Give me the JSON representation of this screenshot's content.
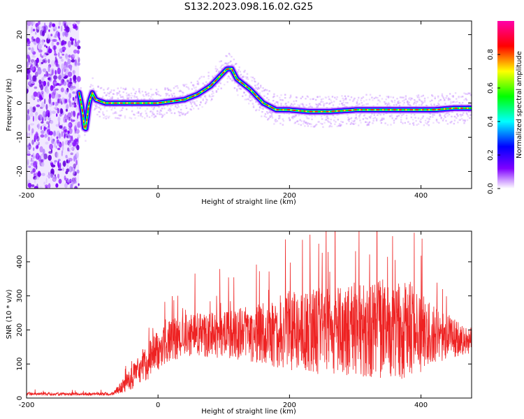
{
  "title": "S132.2023.098.16.02.G25",
  "colors": {
    "snr_line": "#ee2222",
    "colormap": [
      "#ffffff",
      "#cc99ff",
      "#7f00ff",
      "#0000ff",
      "#00ffff",
      "#00ff00",
      "#ffff00",
      "#ff0000",
      "#ff00aa"
    ]
  },
  "chart_data": [
    {
      "type": "heatmap",
      "name": "spectrogram",
      "xlabel": "Height of straight line (km)",
      "ylabel": "Frequency (Hz)",
      "xlim": [
        -200,
        477
      ],
      "ylim": [
        -25,
        24
      ],
      "x_ticks": [
        -200,
        0,
        200,
        400
      ],
      "y_ticks": [
        -20,
        -10,
        0,
        10,
        20
      ],
      "noise_region_x": [
        -200,
        -120
      ],
      "ridge": [
        {
          "x": -120,
          "y": 3
        },
        {
          "x": -115,
          "y": -2
        },
        {
          "x": -111,
          "y": -9
        },
        {
          "x": -105,
          "y": 0
        },
        {
          "x": -100,
          "y": 3
        },
        {
          "x": -95,
          "y": 1
        },
        {
          "x": -80,
          "y": 0
        },
        {
          "x": -50,
          "y": 0
        },
        {
          "x": -20,
          "y": 0
        },
        {
          "x": 0,
          "y": 0
        },
        {
          "x": 20,
          "y": 0.5
        },
        {
          "x": 40,
          "y": 1
        },
        {
          "x": 60,
          "y": 2.5
        },
        {
          "x": 80,
          "y": 5
        },
        {
          "x": 95,
          "y": 8
        },
        {
          "x": 105,
          "y": 10
        },
        {
          "x": 112,
          "y": 10
        },
        {
          "x": 120,
          "y": 7
        },
        {
          "x": 140,
          "y": 4
        },
        {
          "x": 160,
          "y": 0
        },
        {
          "x": 180,
          "y": -2
        },
        {
          "x": 200,
          "y": -2
        },
        {
          "x": 230,
          "y": -2.5
        },
        {
          "x": 260,
          "y": -2.5
        },
        {
          "x": 300,
          "y": -2
        },
        {
          "x": 340,
          "y": -2
        },
        {
          "x": 380,
          "y": -2
        },
        {
          "x": 420,
          "y": -2
        },
        {
          "x": 450,
          "y": -1.5
        },
        {
          "x": 477,
          "y": -1.5
        }
      ],
      "colorbar": {
        "label": "Normalized spectral amplitude",
        "range": [
          0,
          1
        ],
        "ticks": [
          "0.0",
          "0.2",
          "0.4",
          "0.6",
          "0.8"
        ]
      }
    },
    {
      "type": "line",
      "name": "snr",
      "xlabel": "Height of straight line (km)",
      "ylabel": "SNR (10 * v/v)",
      "xlim": [
        -200,
        477
      ],
      "ylim": [
        0,
        490
      ],
      "x_ticks": [
        -200,
        0,
        200,
        400
      ],
      "y_ticks": [
        0,
        100,
        200,
        300,
        400
      ],
      "envelope": [
        {
          "x": -200,
          "mean": 12,
          "amp": 6
        },
        {
          "x": -70,
          "mean": 12,
          "amp": 6
        },
        {
          "x": -50,
          "mean": 40,
          "amp": 30
        },
        {
          "x": -30,
          "mean": 80,
          "amp": 60
        },
        {
          "x": -10,
          "mean": 120,
          "amp": 80
        },
        {
          "x": 10,
          "mean": 160,
          "amp": 80
        },
        {
          "x": 40,
          "mean": 185,
          "amp": 85
        },
        {
          "x": 100,
          "mean": 185,
          "amp": 90
        },
        {
          "x": 160,
          "mean": 190,
          "amp": 120
        },
        {
          "x": 200,
          "mean": 195,
          "amp": 160
        },
        {
          "x": 300,
          "mean": 200,
          "amp": 180
        },
        {
          "x": 380,
          "mean": 200,
          "amp": 200
        },
        {
          "x": 420,
          "mean": 185,
          "amp": 110
        },
        {
          "x": 477,
          "mean": 170,
          "amp": 50
        }
      ]
    }
  ]
}
